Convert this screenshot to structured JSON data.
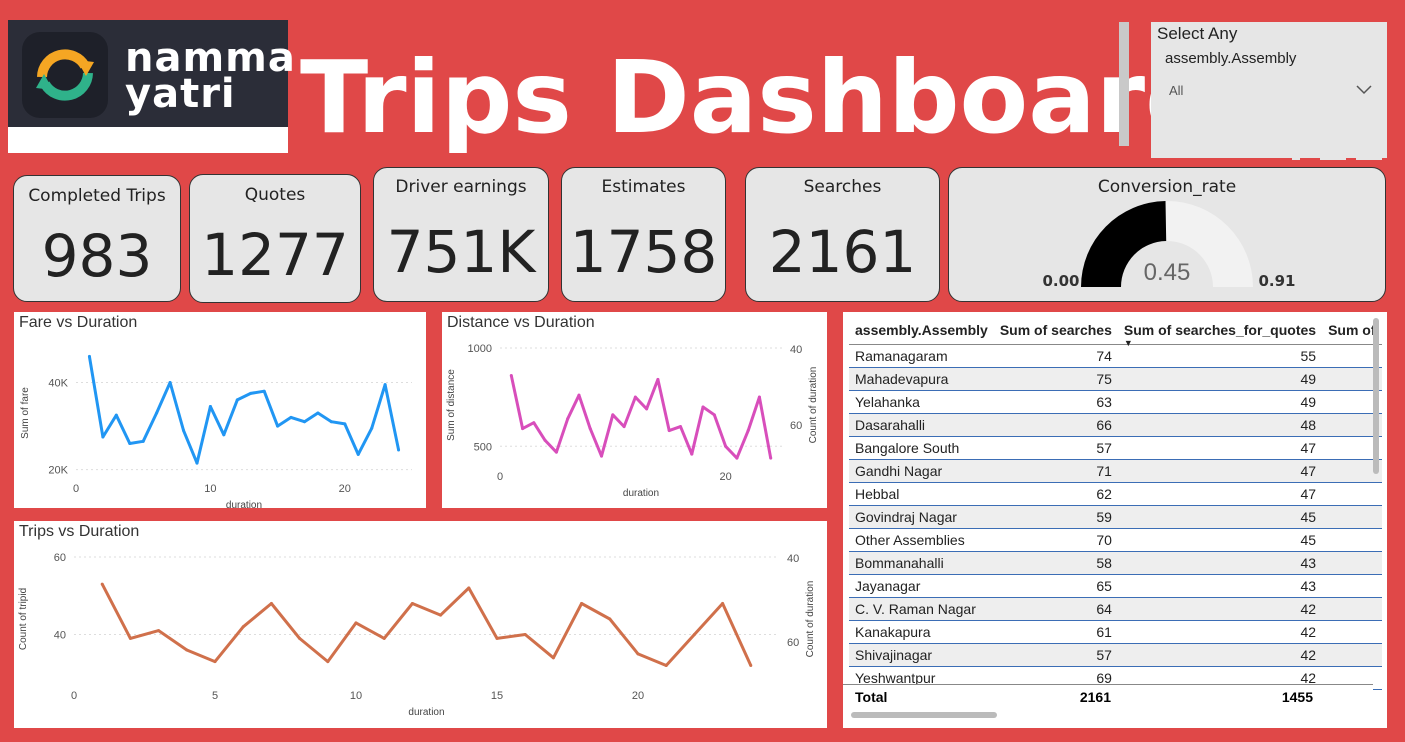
{
  "brand": {
    "name_line1": "namma",
    "name_line2": "yatri"
  },
  "dashboard_title": "Trips Dashboard",
  "slicer": {
    "title": "Select Any",
    "field": "assembly.Assembly",
    "value": "All"
  },
  "kpis": [
    {
      "label": "Completed Trips",
      "value": "983"
    },
    {
      "label": "Quotes",
      "value": "1277"
    },
    {
      "label": "Driver earnings",
      "value": "751K"
    },
    {
      "label": "Estimates",
      "value": "1758"
    },
    {
      "label": "Searches",
      "value": "2161"
    }
  ],
  "gauge": {
    "title": "Conversion_rate",
    "value": 0.45,
    "value_label": "0.45",
    "min_label": "0.00",
    "max_label": "0.91",
    "fill_color": "#000000",
    "track_color": "#f2f2f2"
  },
  "chart_data": [
    {
      "type": "line",
      "title": "Fare vs Duration",
      "xlabel": "duration",
      "ylabel": "Sum of fare",
      "x_ticks": [
        "0",
        "10",
        "20"
      ],
      "y_ticks": [
        "20K",
        "40K"
      ],
      "color": "#2196f3",
      "x": [
        1,
        2,
        3,
        4,
        5,
        6,
        7,
        8,
        9,
        10,
        11,
        12,
        13,
        14,
        15,
        16,
        17,
        18,
        19,
        20,
        21,
        22,
        23,
        24
      ],
      "values": [
        46000,
        27500,
        32500,
        26000,
        26500,
        33000,
        40000,
        29000,
        21500,
        34500,
        28000,
        36000,
        37500,
        38000,
        30000,
        32000,
        31000,
        33000,
        31000,
        30500,
        23500,
        29500,
        39500,
        24500
      ],
      "xlim": [
        0,
        25
      ],
      "ylim": [
        19000,
        47000
      ]
    },
    {
      "type": "line",
      "title": "Distance vs Duration",
      "xlabel": "duration",
      "ylabel": "Sum of distance",
      "y2label": "Count of duration",
      "x_ticks": [
        "0",
        "20"
      ],
      "y_ticks": [
        "500",
        "1000"
      ],
      "y2_ticks": [
        "40",
        "60"
      ],
      "color": "#d84ebb",
      "x": [
        1,
        2,
        3,
        4,
        5,
        6,
        7,
        8,
        9,
        10,
        11,
        12,
        13,
        14,
        15,
        16,
        17,
        18,
        19,
        20,
        21,
        22,
        23,
        24
      ],
      "values": [
        860,
        590,
        620,
        530,
        470,
        640,
        760,
        590,
        450,
        660,
        600,
        750,
        690,
        840,
        580,
        600,
        460,
        700,
        660,
        500,
        440,
        580,
        750,
        440
      ],
      "xlim": [
        0,
        25
      ],
      "ylim": [
        420,
        1000
      ]
    },
    {
      "type": "line",
      "title": "Trips vs Duration",
      "xlabel": "duration",
      "ylabel": "Count of tripid",
      "y2label": "Count of duration",
      "x_ticks": [
        "0",
        "5",
        "10",
        "15",
        "20"
      ],
      "y_ticks": [
        "40",
        "60"
      ],
      "y2_ticks": [
        "40",
        "60"
      ],
      "color": "#d0704b",
      "x": [
        1,
        2,
        3,
        4,
        5,
        6,
        7,
        8,
        9,
        10,
        11,
        12,
        13,
        14,
        15,
        16,
        17,
        18,
        19,
        20,
        21,
        22,
        23,
        24
      ],
      "values": [
        53,
        39,
        41,
        36,
        33,
        42,
        48,
        39,
        33,
        43,
        39,
        48,
        45,
        52,
        39,
        40,
        34,
        48,
        44,
        35,
        32,
        40,
        48,
        32
      ],
      "xlim": [
        0,
        25
      ],
      "ylim": [
        28,
        60
      ]
    }
  ],
  "table": {
    "columns": [
      "assembly.Assembly",
      "Sum of searches",
      "Sum of searches_for_quotes",
      "Sum of"
    ],
    "sort_indicator": "▼",
    "rows": [
      [
        "Ramanagaram",
        "74",
        "55"
      ],
      [
        "Mahadevapura",
        "75",
        "49"
      ],
      [
        "Yelahanka",
        "63",
        "49"
      ],
      [
        "Dasarahalli",
        "66",
        "48"
      ],
      [
        "Bangalore South",
        "57",
        "47"
      ],
      [
        "Gandhi Nagar",
        "71",
        "47"
      ],
      [
        "Hebbal",
        "62",
        "47"
      ],
      [
        "Govindraj Nagar",
        "59",
        "45"
      ],
      [
        "Other Assemblies",
        "70",
        "45"
      ],
      [
        "Bommanahalli",
        "58",
        "43"
      ],
      [
        "Jayanagar",
        "65",
        "43"
      ],
      [
        "C. V. Raman Nagar",
        "64",
        "42"
      ],
      [
        "Kanakapura",
        "61",
        "42"
      ],
      [
        "Shivajinagar",
        "57",
        "42"
      ],
      [
        "Yeshwantpur",
        "69",
        "42"
      ]
    ],
    "total": {
      "label": "Total",
      "searches": "2161",
      "quotes": "1455"
    }
  }
}
